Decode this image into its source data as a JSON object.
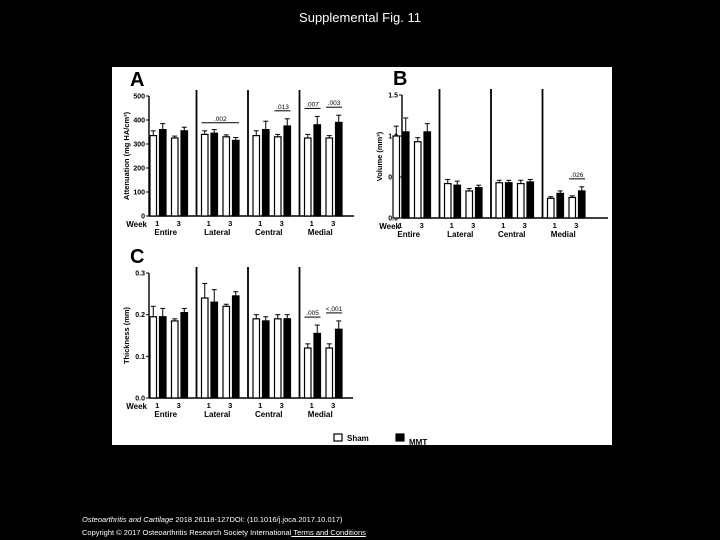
{
  "slide": {
    "title": "Supplemental Fig. 11",
    "citation_journal": "Osteoarthritis and Cartilage",
    "citation_rest": " 2018 26118-127DOI: (10.1016/j.joca.2017.10.017)",
    "copyright": "Copyright © 2017 Osteoarthritis Research Society International",
    "terms_link": " Terms and Conditions"
  },
  "colors": {
    "sham": "#ffffff",
    "mmt": "#000000",
    "background": "#000000",
    "panel": "#ffffff"
  },
  "legend": {
    "sham": "Sham",
    "mmt": "MMT"
  },
  "chart_data": [
    {
      "panel_label": "A",
      "type": "bar",
      "ylabel": "Attenuation (mg HA/cm³)",
      "xlabel": "Week",
      "ylim": [
        0,
        500
      ],
      "yticks": [
        "0",
        "100",
        "200",
        "300",
        "400",
        "500"
      ],
      "week_labels": [
        "1",
        "3"
      ],
      "groups": [
        "Entire",
        "Lateral",
        "Central",
        "Medial"
      ],
      "series": [
        {
          "name": "Sham",
          "values": [
            335,
            325,
            340,
            330,
            335,
            330,
            325,
            325
          ],
          "errors": [
            20,
            8,
            15,
            8,
            20,
            10,
            15,
            10
          ]
        },
        {
          "name": "MMT",
          "values": [
            360,
            355,
            345,
            315,
            360,
            375,
            380,
            390
          ],
          "errors": [
            25,
            15,
            15,
            12,
            35,
            30,
            35,
            30
          ]
        }
      ],
      "annotations": [
        {
          "text": ".002",
          "group": 1
        },
        {
          "text": ".013",
          "group": 2,
          "week": 1
        },
        {
          "text": ".007",
          "group": 3,
          "week": 0
        },
        {
          "text": ".003",
          "group": 3,
          "week": 1
        }
      ]
    },
    {
      "panel_label": "B",
      "type": "bar",
      "ylabel": "Volume (mm³)",
      "xlabel": "Week",
      "ylim": [
        0,
        1.5
      ],
      "yticks": [
        "0.0",
        "0.5",
        "1.0",
        "1.5"
      ],
      "week_labels": [
        "1",
        "3"
      ],
      "groups": [
        "Entire",
        "Lateral",
        "Central",
        "Medial"
      ],
      "series": [
        {
          "name": "Sham",
          "values": [
            1.0,
            0.93,
            0.42,
            0.33,
            0.43,
            0.42,
            0.24,
            0.25
          ],
          "errors": [
            0.12,
            0.05,
            0.05,
            0.03,
            0.03,
            0.04,
            0.02,
            0.02
          ]
        },
        {
          "name": "MMT",
          "values": [
            1.05,
            1.05,
            0.4,
            0.37,
            0.43,
            0.44,
            0.3,
            0.33
          ],
          "errors": [
            0.17,
            0.1,
            0.05,
            0.03,
            0.03,
            0.03,
            0.03,
            0.05
          ]
        }
      ],
      "annotations": [
        {
          "text": ".026",
          "group": 3,
          "week": 1
        }
      ]
    },
    {
      "panel_label": "C",
      "type": "bar",
      "ylabel": "Thickness (mm)",
      "xlabel": "Week",
      "ylim": [
        0,
        0.3
      ],
      "yticks": [
        "0.0",
        "0.1",
        "0.2",
        "0.3"
      ],
      "week_labels": [
        "1",
        "3"
      ],
      "groups": [
        "Entire",
        "Lateral",
        "Central",
        "Medial"
      ],
      "series": [
        {
          "name": "Sham",
          "values": [
            0.195,
            0.185,
            0.24,
            0.22,
            0.19,
            0.19,
            0.12,
            0.12
          ],
          "errors": [
            0.025,
            0.005,
            0.035,
            0.005,
            0.01,
            0.01,
            0.01,
            0.01
          ]
        },
        {
          "name": "MMT",
          "values": [
            0.195,
            0.205,
            0.23,
            0.245,
            0.185,
            0.19,
            0.155,
            0.165
          ],
          "errors": [
            0.02,
            0.01,
            0.03,
            0.01,
            0.01,
            0.01,
            0.02,
            0.02
          ]
        }
      ],
      "annotations": [
        {
          "text": ".005",
          "group": 3,
          "week": 0
        },
        {
          "text": "<.001",
          "group": 3,
          "week": 1
        }
      ]
    }
  ]
}
